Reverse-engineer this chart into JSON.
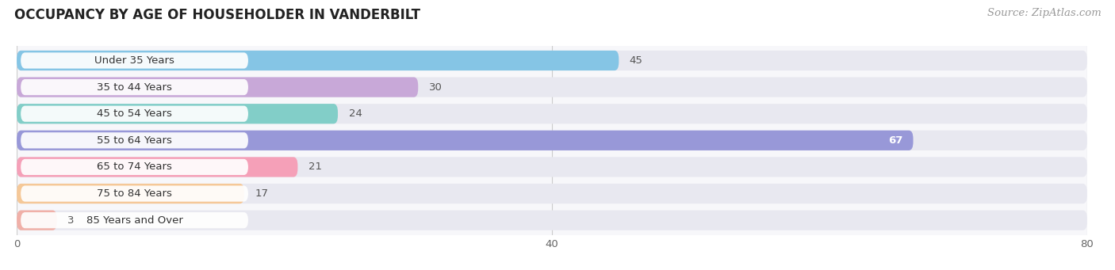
{
  "title": "OCCUPANCY BY AGE OF HOUSEHOLDER IN VANDERBILT",
  "source": "Source: ZipAtlas.com",
  "categories": [
    "Under 35 Years",
    "35 to 44 Years",
    "45 to 54 Years",
    "55 to 64 Years",
    "65 to 74 Years",
    "75 to 84 Years",
    "85 Years and Over"
  ],
  "values": [
    45,
    30,
    24,
    67,
    21,
    17,
    3
  ],
  "bar_colors": [
    "#85c5e5",
    "#c8a8d8",
    "#82cec8",
    "#9898d8",
    "#f5a0b8",
    "#f5c898",
    "#f0b0a8"
  ],
  "bg_bar_color": "#e8e8f0",
  "pill_color": "#ffffff",
  "xlim": [
    0,
    80
  ],
  "xticks": [
    0,
    40,
    80
  ],
  "title_fontsize": 12,
  "label_fontsize": 9.5,
  "value_fontsize": 9.5,
  "source_fontsize": 9.5,
  "background_color": "#ffffff",
  "plot_bg_color": "#f7f7fa"
}
